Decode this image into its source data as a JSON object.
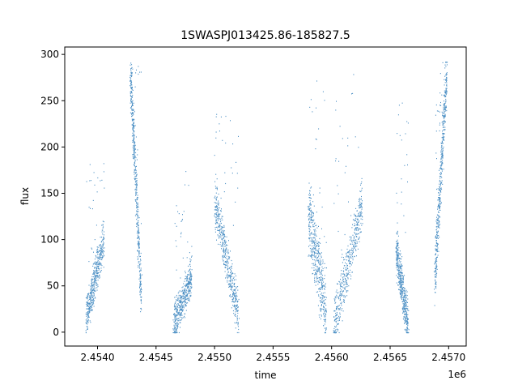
{
  "chart_data": {
    "type": "scatter",
    "title": "1SWASPJ013425.86-185827.5",
    "xlabel": "time",
    "ylabel": "flux",
    "x_offset_label": "1e6",
    "xlim": [
      2.45372,
      2.45715
    ],
    "ylim": [
      -15,
      308
    ],
    "x_ticks": [
      2.454,
      2.4545,
      2.455,
      2.4555,
      2.456,
      2.4565,
      2.457
    ],
    "x_tick_labels": [
      "2.4540",
      "2.4545",
      "2.4550",
      "2.4555",
      "2.4560",
      "2.4565",
      "2.4570"
    ],
    "y_ticks": [
      0,
      50,
      100,
      150,
      200,
      250,
      300
    ],
    "y_tick_labels": [
      "0",
      "50",
      "100",
      "150",
      "200",
      "250",
      "300"
    ],
    "grid": false,
    "point_color": "#4b8fc4",
    "series_note": "light-curve segments (x in 1e6 time units, flux trends)",
    "segments": [
      {
        "x_start": 2.4539,
        "x_end": 2.45405,
        "y_start": 15,
        "y_end": 100,
        "spread": 30,
        "peak": 200
      },
      {
        "x_start": 2.45428,
        "x_end": 2.45437,
        "y_start": 280,
        "y_end": 40,
        "spread": 40,
        "peak": 292
      },
      {
        "x_start": 2.45465,
        "x_end": 2.4548,
        "y_start": 10,
        "y_end": 60,
        "spread": 30,
        "peak": 175
      },
      {
        "x_start": 2.455,
        "x_end": 2.4552,
        "y_start": 140,
        "y_end": 20,
        "spread": 35,
        "peak": 250
      },
      {
        "x_start": 2.4558,
        "x_end": 2.45595,
        "y_start": 130,
        "y_end": 20,
        "spread": 60,
        "peak": 292
      },
      {
        "x_start": 2.45602,
        "x_end": 2.45626,
        "y_start": 10,
        "y_end": 140,
        "spread": 40,
        "peak": 280
      },
      {
        "x_start": 2.45655,
        "x_end": 2.45665,
        "y_start": 90,
        "y_end": 8,
        "spread": 35,
        "peak": 270
      },
      {
        "x_start": 2.45688,
        "x_end": 2.45698,
        "y_start": 60,
        "y_end": 280,
        "spread": 40,
        "peak": 292
      }
    ]
  }
}
